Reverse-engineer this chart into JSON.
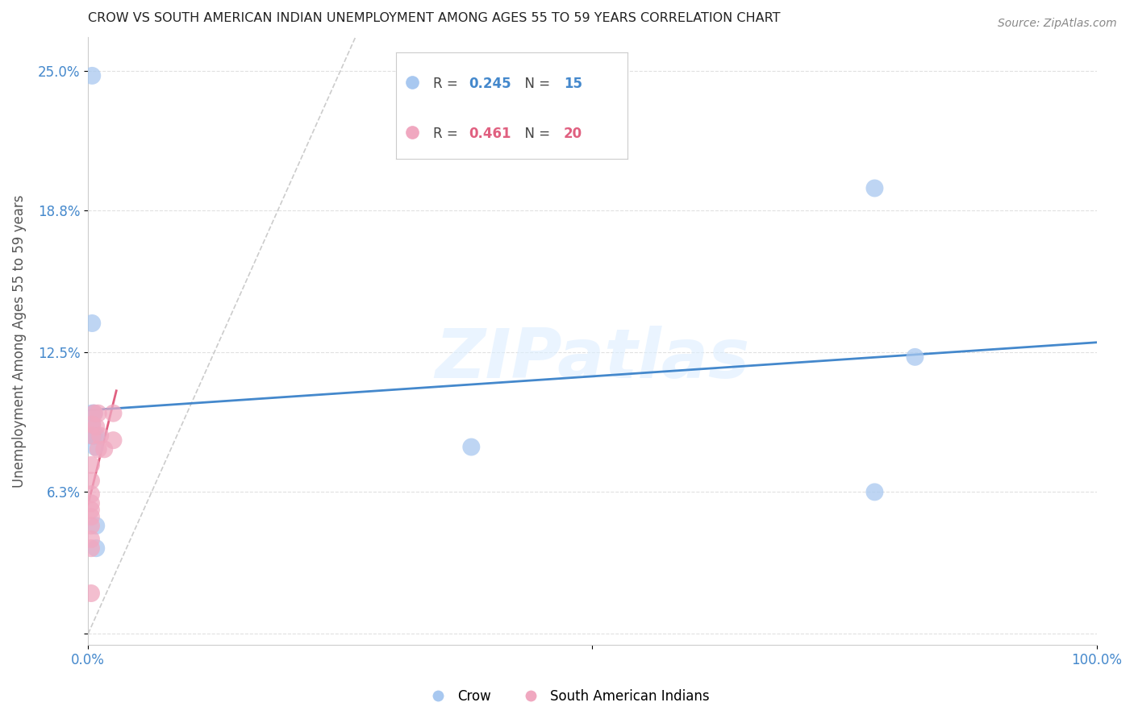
{
  "title": "CROW VS SOUTH AMERICAN INDIAN UNEMPLOYMENT AMONG AGES 55 TO 59 YEARS CORRELATION CHART",
  "source": "Source: ZipAtlas.com",
  "ylabel": "Unemployment Among Ages 55 to 59 years",
  "legend_label_crow": "Crow",
  "legend_label_sa": "South American Indians",
  "R_crow": 0.245,
  "N_crow": 15,
  "R_sa": 0.461,
  "N_sa": 20,
  "crow_color": "#a8c8f0",
  "sa_color": "#f0a8c0",
  "crow_line_color": "#4488cc",
  "sa_line_color": "#e06080",
  "ref_line_color": "#cccccc",
  "watermark": "ZIPatlas",
  "xlim": [
    0.0,
    1.0
  ],
  "ylim": [
    -0.005,
    0.265
  ],
  "yticks": [
    0.0,
    0.063,
    0.125,
    0.188,
    0.25
  ],
  "ytick_labels": [
    "",
    "6.3%",
    "12.5%",
    "18.8%",
    "25.0%"
  ],
  "crow_x": [
    0.004,
    0.004,
    0.006,
    0.006,
    0.007,
    0.008,
    0.008,
    0.008,
    0.004,
    0.004,
    0.38,
    0.78,
    0.78,
    0.82,
    0.004
  ],
  "crow_y": [
    0.098,
    0.088,
    0.088,
    0.098,
    0.083,
    0.088,
    0.048,
    0.038,
    0.138,
    0.248,
    0.083,
    0.198,
    0.063,
    0.123,
    0.093
  ],
  "sa_x": [
    0.003,
    0.003,
    0.003,
    0.003,
    0.003,
    0.003,
    0.003,
    0.003,
    0.003,
    0.004,
    0.004,
    0.006,
    0.008,
    0.01,
    0.01,
    0.012,
    0.016,
    0.025,
    0.025,
    0.003
  ],
  "sa_y": [
    0.038,
    0.042,
    0.048,
    0.052,
    0.055,
    0.058,
    0.062,
    0.068,
    0.075,
    0.088,
    0.093,
    0.098,
    0.092,
    0.082,
    0.098,
    0.088,
    0.082,
    0.098,
    0.086,
    0.018
  ],
  "bg_color": "#ffffff",
  "grid_color": "#e0e0e0",
  "crow_trend_x": [
    0.0,
    1.0
  ],
  "crow_trend_y": [
    0.098,
    0.138
  ],
  "sa_trend_x": [
    0.0,
    0.04
  ],
  "sa_trend_y": [
    0.05,
    0.145
  ]
}
